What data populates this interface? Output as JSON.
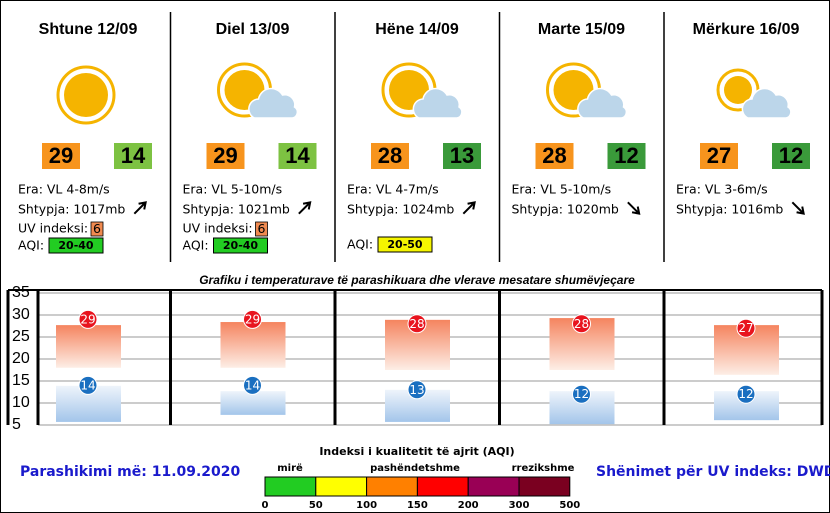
{
  "days": [
    {
      "name": "Shtune 12/09",
      "high": 29,
      "low": 14,
      "wind": "Era: VL 4-8m/s",
      "pressure": "Shtypja: 1017mb",
      "uv_label": "UV indeksi:",
      "uv": 6,
      "aqi_label": "AQI:",
      "aqi": "20-40",
      "low_color": "#7dc242",
      "aqi_color": "#22cc22"
    },
    {
      "name": "Diel 13/09",
      "high": 29,
      "low": 14,
      "wind": "Era: VL 5-10m/s",
      "pressure": "Shtypja: 1021mb",
      "uv_label": "UV indeksi:",
      "uv": 6,
      "aqi_label": "AQI:",
      "aqi": "20-40",
      "low_color": "#7dc242",
      "aqi_color": "#22cc22"
    },
    {
      "name": "Hëne 14/09",
      "high": 28,
      "low": 13,
      "wind": "Era: VL 4-7m/s",
      "pressure": "Shtypja: 1024mb",
      "aqi_label": "AQI:",
      "aqi": "20-50",
      "low_color": "#3a9a3a",
      "aqi_color": "#f5f500"
    },
    {
      "name": "Marte 15/09",
      "high": 28,
      "low": 12,
      "wind": "Era: VL 5-10m/s",
      "pressure": "Shtypja: 1020mb",
      "low_color": "#3a9a3a"
    },
    {
      "name": "Mërkure 16/09",
      "high": 27,
      "low": 12,
      "wind": "Era: VL 3-6m/s",
      "pressure": "Shtypja: 1016mb",
      "low_color": "#3a9a3a"
    }
  ],
  "high_color": "#f7941d",
  "uv_color": "#f08a50",
  "chart_data": {
    "type": "range",
    "title": "Grafiku i temperaturave të parashikuara dhe vlerave mesatare shumëvjeçare",
    "ylim": [
      5,
      35
    ],
    "yticks": [
      5,
      10,
      15,
      20,
      25,
      30,
      35
    ],
    "grid": true,
    "normal_high": [
      [
        18,
        27.7
      ],
      [
        18,
        28.4
      ],
      [
        17.5,
        28.9
      ],
      [
        17.5,
        29.3
      ],
      [
        16.4,
        27.7
      ]
    ],
    "normal_low": [
      [
        5.7,
        13.9
      ],
      [
        7.3,
        12.7
      ],
      [
        5.7,
        13
      ],
      [
        5.2,
        12.7
      ],
      [
        6.1,
        12.7
      ]
    ],
    "high_color": "#e8141e",
    "low_color": "#1a6fc0"
  },
  "aqi_legend": {
    "title": "Indeksi i kualitetit të ajrit (AQI)",
    "labels": [
      "mirë",
      "pashëndetshme",
      "rrezikshme"
    ],
    "ticks": [
      0,
      50,
      100,
      150,
      200,
      300,
      500
    ],
    "colors": [
      "#22cc22",
      "#ffff00",
      "#ff8000",
      "#ff0000",
      "#990055",
      "#7a0020"
    ]
  },
  "footer": {
    "left": "Parashikimi më: 11.09.2020",
    "right": "Shënimet për UV indeks: DWD"
  }
}
